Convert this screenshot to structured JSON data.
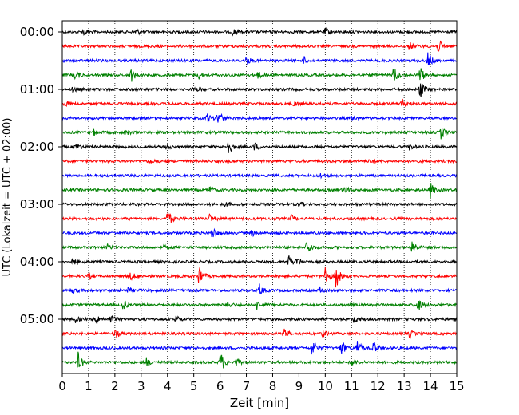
{
  "chart_data": {
    "type": "line",
    "title": "",
    "xlabel": "Zeit  [min]",
    "ylabel": "UTC (Lokalzeit = UTC + 02:00)",
    "xlim": [
      0,
      15
    ],
    "x_ticks": [
      "0",
      "1",
      "2",
      "3",
      "4",
      "5",
      "6",
      "7",
      "8",
      "9",
      "10",
      "11",
      "12",
      "13",
      "14",
      "15"
    ],
    "y_tick_labels": [
      "00:00",
      "01:00",
      "02:00",
      "03:00",
      "04:00",
      "05:00"
    ],
    "grid": "vertical dotted",
    "series_colors": [
      "#000000",
      "#ff0000",
      "#0000ff",
      "#008000"
    ],
    "rows": [
      {
        "start": "00:00",
        "color": "#000000",
        "bursts": [
          [
            0.8,
            0.4
          ],
          [
            2.8,
            0.4
          ],
          [
            6.5,
            0.4
          ],
          [
            10,
            0.5
          ]
        ]
      },
      {
        "start": "00:15",
        "color": "#ff0000",
        "bursts": [
          [
            13.2,
            0.5
          ],
          [
            14.3,
            0.9
          ]
        ]
      },
      {
        "start": "00:30",
        "color": "#0000ff",
        "bursts": [
          [
            7.0,
            0.5
          ],
          [
            9.2,
            0.4
          ],
          [
            13.9,
            1.0
          ]
        ]
      },
      {
        "start": "00:45",
        "color": "#008000",
        "bursts": [
          [
            0.5,
            0.6
          ],
          [
            2.6,
            1.0
          ],
          [
            5.2,
            0.5
          ],
          [
            7.4,
            0.6
          ],
          [
            12.6,
            1.2
          ],
          [
            13.6,
            1.1
          ]
        ]
      },
      {
        "start": "01:00",
        "color": "#000000",
        "bursts": [
          [
            0.4,
            0.4
          ],
          [
            5.0,
            0.4
          ],
          [
            13.6,
            1.2
          ]
        ]
      },
      {
        "start": "01:15",
        "color": "#ff0000",
        "bursts": [
          [
            0.1,
            0.4
          ],
          [
            8.8,
            0.3
          ],
          [
            12.9,
            0.8
          ]
        ]
      },
      {
        "start": "01:30",
        "color": "#0000ff",
        "bursts": [
          [
            5.5,
            0.6
          ],
          [
            5.9,
            1.2
          ],
          [
            11.0,
            0.3
          ]
        ]
      },
      {
        "start": "01:45",
        "color": "#008000",
        "bursts": [
          [
            1.2,
            0.4
          ],
          [
            2.4,
            0.4
          ],
          [
            14.4,
            0.8
          ]
        ]
      },
      {
        "start": "02:00",
        "color": "#000000",
        "bursts": [
          [
            0.5,
            0.6
          ],
          [
            3.9,
            0.5
          ],
          [
            6.3,
            1.0
          ],
          [
            7.3,
            0.5
          ],
          [
            13.2,
            0.4
          ]
        ]
      },
      {
        "start": "02:15",
        "color": "#ff0000",
        "bursts": [
          [
            3.3,
            0.3
          ],
          [
            11.7,
            0.3
          ]
        ]
      },
      {
        "start": "02:30",
        "color": "#0000ff",
        "bursts": [
          [
            9.8,
            0.3
          ]
        ]
      },
      {
        "start": "02:45",
        "color": "#008000",
        "bursts": [
          [
            5.6,
            0.4
          ],
          [
            10.7,
            0.6
          ],
          [
            14.0,
            1.0
          ]
        ]
      },
      {
        "start": "03:00",
        "color": "#000000",
        "bursts": [
          [
            6.2,
            0.3
          ],
          [
            9.0,
            0.3
          ]
        ]
      },
      {
        "start": "03:15",
        "color": "#ff0000",
        "bursts": [
          [
            4.0,
            1.2
          ],
          [
            5.6,
            0.6
          ],
          [
            8.7,
            0.4
          ]
        ]
      },
      {
        "start": "03:30",
        "color": "#0000ff",
        "bursts": [
          [
            5.7,
            0.9
          ],
          [
            7.2,
            0.4
          ]
        ]
      },
      {
        "start": "03:45",
        "color": "#008000",
        "bursts": [
          [
            1.7,
            0.4
          ],
          [
            3.8,
            0.3
          ],
          [
            9.3,
            1.1
          ],
          [
            13.3,
            0.9
          ]
        ]
      },
      {
        "start": "04:00",
        "color": "#000000",
        "bursts": [
          [
            0.4,
            0.5
          ],
          [
            8.6,
            0.8
          ],
          [
            8.9,
            0.6
          ]
        ]
      },
      {
        "start": "04:15",
        "color": "#ff0000",
        "bursts": [
          [
            1.0,
            0.4
          ],
          [
            2.6,
            0.5
          ],
          [
            5.2,
            1.4
          ],
          [
            10.0,
            1.3
          ],
          [
            10.4,
            1.6
          ]
        ]
      },
      {
        "start": "04:30",
        "color": "#0000ff",
        "bursts": [
          [
            0.4,
            0.4
          ],
          [
            2.5,
            0.4
          ],
          [
            7.5,
            0.7
          ],
          [
            9.8,
            0.4
          ]
        ]
      },
      {
        "start": "04:45",
        "color": "#008000",
        "bursts": [
          [
            2.3,
            0.7
          ],
          [
            6.3,
            0.4
          ],
          [
            7.4,
            0.6
          ],
          [
            13.5,
            1.1
          ]
        ]
      },
      {
        "start": "05:00",
        "color": "#000000",
        "bursts": [
          [
            0.5,
            0.4
          ],
          [
            1.3,
            0.6
          ],
          [
            1.8,
            0.7
          ],
          [
            4.3,
            0.5
          ],
          [
            11.1,
            0.5
          ]
        ]
      },
      {
        "start": "05:15",
        "color": "#ff0000",
        "bursts": [
          [
            2.0,
            0.6
          ],
          [
            8.4,
            0.9
          ],
          [
            9.9,
            0.4
          ],
          [
            13.2,
            0.5
          ]
        ]
      },
      {
        "start": "05:30",
        "color": "#0000ff",
        "bursts": [
          [
            9.5,
            1.4
          ],
          [
            10.6,
            1.0
          ],
          [
            11.2,
            1.1
          ],
          [
            11.8,
            0.9
          ]
        ]
      },
      {
        "start": "05:45",
        "color": "#008000",
        "bursts": [
          [
            0.6,
            1.2
          ],
          [
            3.2,
            0.6
          ],
          [
            6.0,
            1.5
          ],
          [
            6.6,
            0.5
          ],
          [
            11.0,
            0.6
          ]
        ]
      }
    ]
  }
}
